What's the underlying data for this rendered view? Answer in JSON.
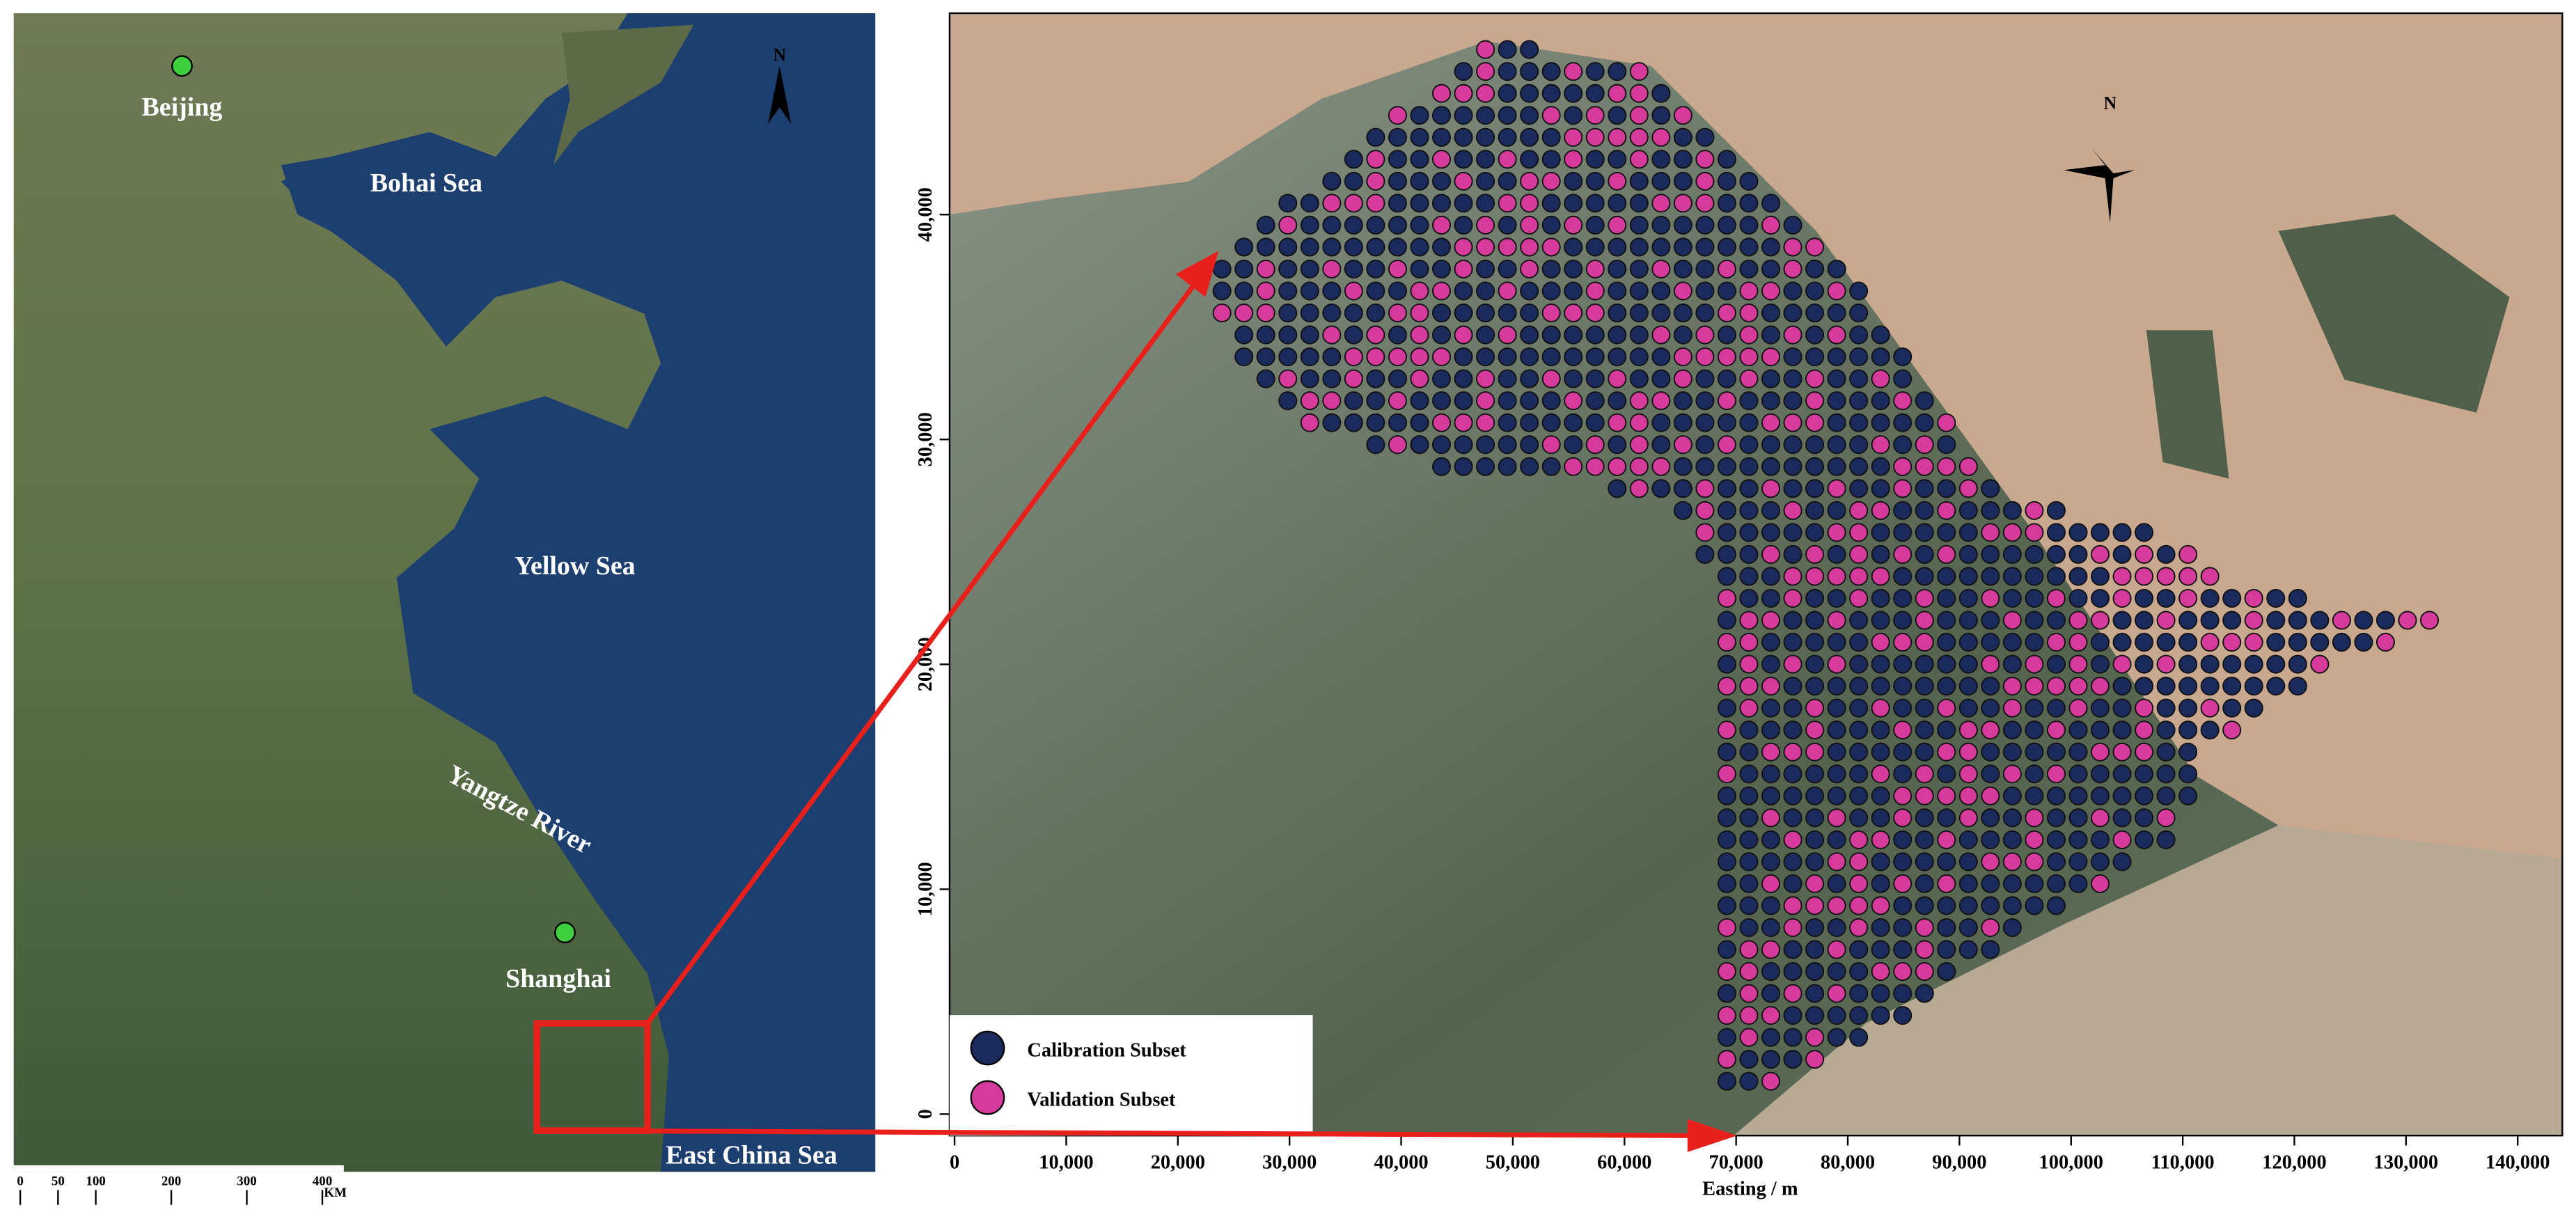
{
  "left_map": {
    "cities": [
      "Beijing",
      "Shanghai"
    ],
    "seas": [
      "Bohai Sea",
      "Yellow Sea",
      "East China Sea"
    ],
    "river": "Yangtze River",
    "north": "N",
    "scale_bar": {
      "ticks": [
        0,
        50,
        100,
        200,
        300,
        400
      ],
      "unit": "KM"
    }
  },
  "right_map": {
    "north": "N",
    "x_label": "Easting / m",
    "xlim": [
      -444,
      144000
    ],
    "ylim": [
      -954,
      48954
    ],
    "xticks": [
      0,
      {
        "value": 10000,
        "label": "10,000"
      },
      {
        "value": 20000,
        "label": "20,000"
      },
      {
        "value": 30000,
        "label": "30,000"
      },
      {
        "value": 40000,
        "label": "40,000"
      },
      {
        "value": 50000,
        "label": "50,000"
      },
      {
        "value": 60000,
        "label": "60,000"
      },
      {
        "value": 70000,
        "label": "70,000"
      },
      {
        "value": 80000,
        "label": "80,000"
      },
      {
        "value": 90000,
        "label": "90,000"
      },
      {
        "value": 100000,
        "label": "100,000"
      },
      {
        "value": 110000,
        "label": "110,000"
      },
      {
        "value": 120000,
        "label": "120,000"
      },
      {
        "value": 130000,
        "label": "130,000"
      },
      {
        "value": 140000,
        "label": "140,000"
      }
    ],
    "yticks": [
      0,
      {
        "value": 10000,
        "label": "10,000"
      },
      {
        "value": 20000,
        "label": "20,000"
      },
      {
        "value": 30000,
        "label": "30,000"
      },
      {
        "value": 40000,
        "label": "40,000"
      }
    ],
    "legend": [
      {
        "label": "Calibration Subset",
        "color": "#1b2a5c"
      },
      {
        "label": "Validation Subset",
        "color": "#d63a9a"
      }
    ]
  }
}
